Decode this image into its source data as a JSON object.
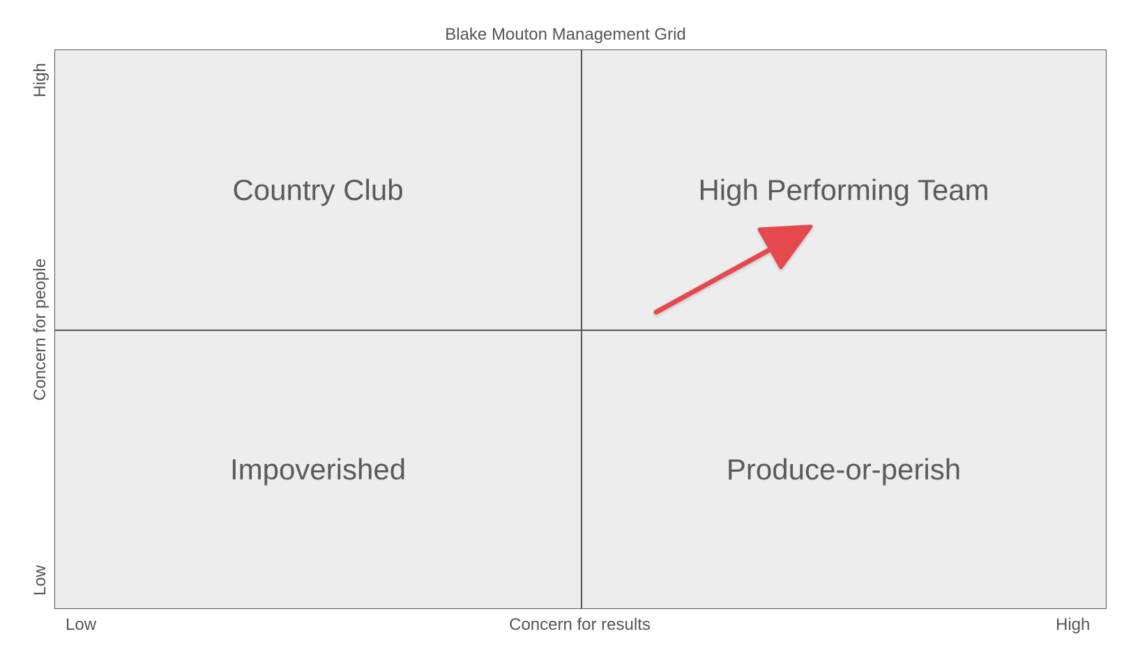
{
  "title": "Blake Mouton Management Grid",
  "quadrants": {
    "top_left": "Country Club",
    "top_right": "High Performing Team",
    "bottom_left": "Impoverished",
    "bottom_right": "Produce-or-perish"
  },
  "x_axis": {
    "label": "Concern for results",
    "low": "Low",
    "high": "High"
  },
  "y_axis": {
    "label": "Concern for people",
    "low": "Low",
    "high": "High"
  },
  "colors": {
    "arrow": "#e5484d",
    "background": "#ededed",
    "lines": "#555555"
  }
}
